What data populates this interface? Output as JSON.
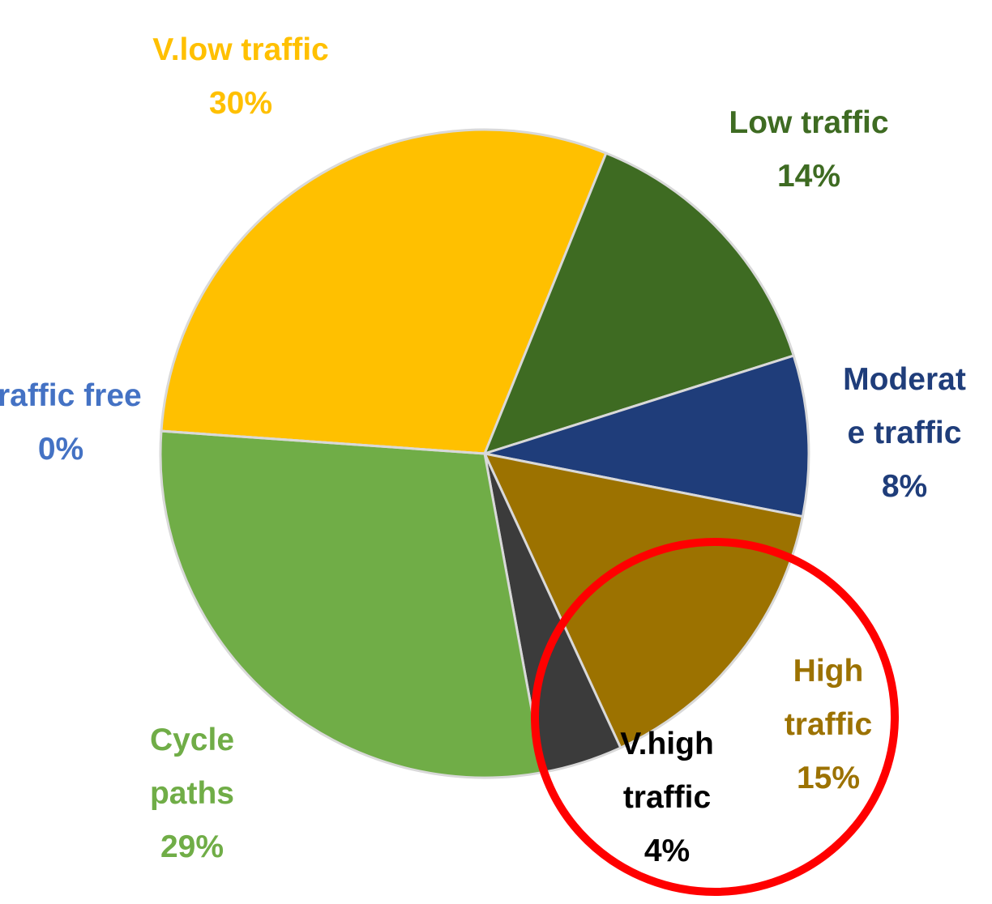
{
  "chart_data": {
    "type": "pie",
    "categories": [
      "V.low traffic",
      "Low traffic",
      "Moderate traffic",
      "High traffic",
      "V.high traffic",
      "Cycle paths",
      "Traffic free"
    ],
    "values": [
      30,
      14,
      8,
      15,
      4,
      29,
      0
    ],
    "value_labels": [
      "30%",
      "14%",
      "8%",
      "15%",
      "4%",
      "29%",
      "0%"
    ],
    "colors": [
      "#ffc000",
      "#3e6b22",
      "#1f3d7a",
      "#9c7200",
      "#3b3b3b",
      "#70ad47",
      "#4472c4"
    ],
    "label_colors": [
      "#ffc000",
      "#3e6b22",
      "#1f3d7a",
      "#9c7200",
      "#000000",
      "#70ad47",
      "#4472c4"
    ]
  }
}
